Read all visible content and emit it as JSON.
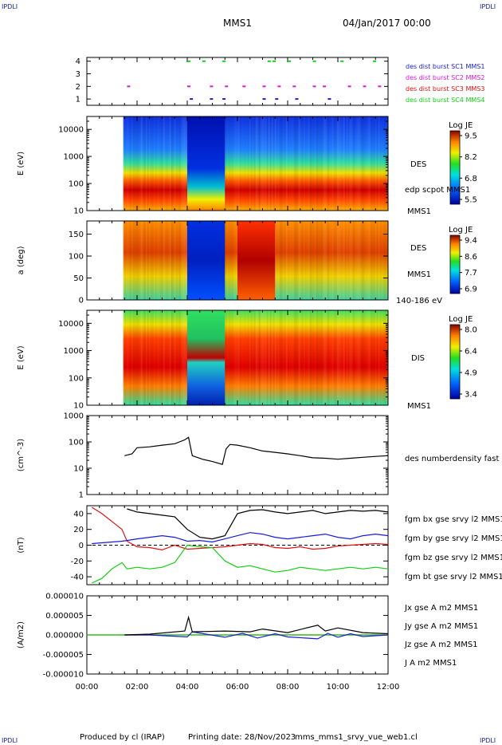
{
  "header": {
    "corner_left_top": "IPDLI",
    "corner_right_top": "IPDLI",
    "corner_left_bottom": "IPDLI",
    "corner_right_bottom": "IPDLI",
    "title": "MMS1",
    "date": "04/Jan/2017 00:00"
  },
  "footer": {
    "produced_by": "Produced by cl (IRAP)",
    "printing_date": "Printing date: 28/Nov/2023",
    "product": "mms_mms1_srvy_vue_web1.cl"
  },
  "colors": {
    "blue": "#1a1ad8",
    "magenta": "#d818d8",
    "red": "#e01010",
    "green": "#10d010",
    "black": "#000000"
  },
  "chart_data": [
    {
      "type": "scatter",
      "id": "burst",
      "ylim": [
        0.5,
        4.3
      ],
      "yticks": [
        "1",
        "2",
        "3",
        "4"
      ],
      "series": [
        {
          "name": "des dist burst SC1 MMS1",
          "color": "#1a1ad8",
          "y": 1,
          "x": [
            4.1,
            4.9,
            5.4,
            7.0,
            7.5,
            8.3,
            9.6
          ]
        },
        {
          "name": "des dist burst SC2 MMS2",
          "color": "#d818d8",
          "y": 2,
          "x": [
            1.6,
            4.0,
            4.9,
            5.5,
            6.2,
            7.0,
            7.6,
            8.2,
            9.0,
            9.4,
            10.4,
            11.0,
            11.6
          ]
        },
        {
          "name": "des dist burst SC3 MMS3",
          "color": "#e01010",
          "y": 3,
          "x": []
        },
        {
          "name": "des dist burst SC4 MMS4",
          "color": "#10d010",
          "y": 4,
          "x": [
            4.0,
            4.6,
            5.4,
            7.2,
            7.4,
            8.0,
            9.0,
            10.1,
            11.4
          ]
        }
      ]
    },
    {
      "type": "heatmap",
      "id": "des_energy",
      "ylabel": "E (eV)",
      "yscale": "log",
      "ylim": [
        10,
        30000
      ],
      "yticks": [
        "10",
        "100",
        "1000",
        "10000"
      ],
      "right_labels": [
        "DES",
        "edp scpot MMS1",
        "MMS1"
      ],
      "colorbar": {
        "title": "Log JE",
        "ticks": [
          "9.5",
          "8.2",
          "6.8",
          "5.5"
        ]
      }
    },
    {
      "type": "heatmap",
      "id": "des_pitch",
      "ylabel": "a (deg)",
      "ylim": [
        0,
        180
      ],
      "yticks": [
        "0",
        "50",
        "100",
        "150"
      ],
      "right_labels": [
        "DES",
        "MMS1",
        "140-186 eV"
      ],
      "colorbar": {
        "title": "Log JE",
        "ticks": [
          "9.4",
          "8.6",
          "7.7",
          "6.9"
        ]
      }
    },
    {
      "type": "heatmap",
      "id": "dis_energy",
      "ylabel": "E (eV)",
      "yscale": "log",
      "ylim": [
        10,
        30000
      ],
      "yticks": [
        "10",
        "100",
        "1000",
        "10000"
      ],
      "right_labels": [
        "DIS",
        "MMS1"
      ],
      "colorbar": {
        "title": "Log JE",
        "ticks": [
          "8.0",
          "6.4",
          "4.9",
          "3.4"
        ]
      }
    },
    {
      "type": "line",
      "id": "density",
      "ylabel": "(cm^-3)",
      "yscale": "log",
      "ylim": [
        1,
        1000
      ],
      "yticks": [
        "1",
        "10",
        "100",
        "1000"
      ],
      "series": [
        {
          "name": "des numberdensity fast M",
          "color": "#000000",
          "x": [
            1.5,
            1.8,
            2.0,
            2.5,
            3.0,
            3.5,
            3.9,
            4.05,
            4.2,
            4.6,
            5.0,
            5.4,
            5.55,
            5.7,
            6.0,
            6.5,
            7.0,
            7.5,
            8.0,
            8.5,
            9.0,
            9.5,
            10.0,
            10.5,
            11.0,
            11.5,
            12.0
          ],
          "y": [
            30,
            35,
            60,
            65,
            75,
            85,
            120,
            150,
            30,
            22,
            18,
            14,
            55,
            80,
            75,
            60,
            45,
            40,
            35,
            30,
            25,
            24,
            22,
            24,
            26,
            28,
            30
          ]
        }
      ]
    },
    {
      "type": "line",
      "id": "magnetic",
      "ylabel": "(nT)",
      "ylim": [
        -50,
        50
      ],
      "yticks": [
        "-40",
        "-20",
        "0",
        "20",
        "40"
      ],
      "series": [
        {
          "name": "fgm bx gse srvy l2 MMS1",
          "color": "#e01010",
          "x": [
            0.2,
            0.6,
            1.0,
            1.4,
            1.6,
            2.0,
            2.5,
            3.0,
            3.5,
            4.0,
            4.5,
            5.0,
            5.5,
            6.0,
            6.5,
            7.0,
            7.5,
            8.0,
            8.5,
            9.0,
            9.5,
            10.0,
            10.5,
            11.0,
            11.5,
            12.0
          ],
          "y": [
            48,
            40,
            30,
            20,
            5,
            -2,
            -3,
            -6,
            0,
            -5,
            -4,
            -3,
            -2,
            0,
            2,
            1,
            -3,
            -4,
            -2,
            -5,
            -4,
            -1,
            0,
            1,
            2,
            1
          ]
        },
        {
          "name": "fgm by gse srvy l2 MMS1",
          "color": "#10d010",
          "x": [
            0.2,
            0.6,
            1.0,
            1.4,
            1.6,
            2.0,
            2.5,
            3.0,
            3.5,
            4.0,
            4.5,
            5.0,
            5.5,
            6.0,
            6.5,
            7.0,
            7.5,
            8.0,
            8.5,
            9.0,
            9.5,
            10.0,
            10.5,
            11.0,
            11.5,
            12.0
          ],
          "y": [
            -48,
            -42,
            -30,
            -22,
            -30,
            -28,
            -30,
            -28,
            -22,
            0,
            -2,
            -3,
            -20,
            -28,
            -26,
            -30,
            -34,
            -32,
            -28,
            -30,
            -32,
            -30,
            -28,
            -30,
            -28,
            -30
          ]
        },
        {
          "name": "fgm bz gse srvy l2 MMS1",
          "color": "#1a1ad8",
          "x": [
            0.2,
            0.6,
            1.0,
            1.4,
            1.6,
            2.0,
            2.5,
            3.0,
            3.5,
            4.0,
            4.5,
            5.0,
            5.5,
            6.0,
            6.5,
            7.0,
            7.5,
            8.0,
            8.5,
            9.0,
            9.5,
            10.0,
            10.5,
            11.0,
            11.5,
            12.0
          ],
          "y": [
            2,
            3,
            4,
            5,
            6,
            8,
            10,
            12,
            10,
            5,
            6,
            4,
            8,
            12,
            16,
            14,
            10,
            8,
            10,
            12,
            14,
            10,
            8,
            12,
            14,
            12
          ]
        },
        {
          "name": "fgm bt gse srvy l2 MMS1",
          "color": "#000000",
          "x": [
            1.6,
            2.0,
            2.5,
            3.0,
            3.5,
            4.0,
            4.5,
            5.0,
            5.5,
            6.0,
            6.5,
            7.0,
            7.5,
            8.0,
            8.5,
            9.0,
            9.5,
            10.0,
            10.5,
            11.0,
            11.5,
            12.0
          ],
          "y": [
            46,
            42,
            40,
            38,
            36,
            20,
            10,
            8,
            12,
            40,
            44,
            45,
            42,
            40,
            42,
            44,
            40,
            42,
            44,
            43,
            44,
            42
          ]
        }
      ]
    },
    {
      "type": "line",
      "id": "current",
      "ylabel": "(A/m2)",
      "ylim": [
        -1e-05,
        1e-05
      ],
      "yticks": [
        "-0.000010",
        "-0.000005",
        "0.000000",
        "0.000005",
        "0.000010"
      ],
      "series": [
        {
          "name": "Jx gse A m2 MMS1",
          "color": "#e01010",
          "x": [
            0,
            12
          ],
          "y": [
            0,
            0
          ]
        },
        {
          "name": "Jy gse A m2 MMS1",
          "color": "#10d010",
          "x": [
            0,
            12
          ],
          "y": [
            0,
            0
          ]
        },
        {
          "name": "Jz gse A m2 MMS1",
          "color": "#1a1ad8",
          "x": [
            1.5,
            2.5,
            4.0,
            4.2,
            5.5,
            6.2,
            6.8,
            7.5,
            8.0,
            9.2,
            9.6,
            10.0,
            10.5,
            11.0,
            12.0
          ],
          "y": [
            0,
            0,
            -5e-07,
            8e-07,
            -6e-07,
            4e-07,
            -8e-07,
            3e-07,
            -5e-07,
            -1e-06,
            4e-07,
            -6e-07,
            3e-07,
            -4e-07,
            0
          ]
        },
        {
          "name": "J A m2 MMS1",
          "color": "#000000",
          "x": [
            1.5,
            2.5,
            3.9,
            4.05,
            4.2,
            5.5,
            6.5,
            7.0,
            8.0,
            9.2,
            9.5,
            10.0,
            11.0,
            12.0
          ],
          "y": [
            0,
            2e-07,
            1e-06,
            4.5e-06,
            8e-07,
            1e-06,
            8e-07,
            1.5e-06,
            6e-07,
            2.5e-06,
            1e-06,
            1.8e-06,
            6e-07,
            3e-07
          ]
        }
      ]
    }
  ],
  "xaxis": {
    "xlim": [
      0,
      12
    ],
    "ticks": [
      {
        "value": 0,
        "label": "00:00"
      },
      {
        "value": 2,
        "label": "02:00"
      },
      {
        "value": 4,
        "label": "04:00"
      },
      {
        "value": 6,
        "label": "06:00"
      },
      {
        "value": 8,
        "label": "08:00"
      },
      {
        "value": 10,
        "label": "10:00"
      },
      {
        "value": 12,
        "label": "12:00"
      }
    ]
  }
}
